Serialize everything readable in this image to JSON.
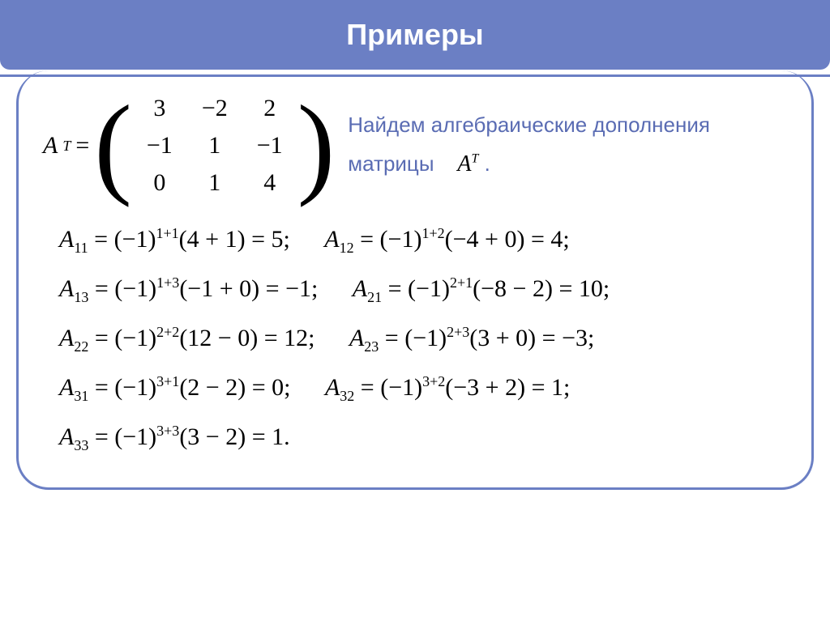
{
  "header": {
    "title": "Примеры"
  },
  "colors": {
    "accent": "#6b7fc4",
    "text_accent": "#5a6cb3",
    "white": "#ffffff",
    "black": "#000000"
  },
  "typography": {
    "header_fontsize": 36,
    "body_fontsize": 26,
    "math_fontsize": 30,
    "matrix_fontsize": 30
  },
  "matrix": {
    "label": "A",
    "superscript": "T",
    "equals": "=",
    "rows": [
      [
        "3",
        "−2",
        "2"
      ],
      [
        "−1",
        "1",
        "−1"
      ],
      [
        "0",
        "1",
        "4"
      ]
    ]
  },
  "description": {
    "line1": "Найдем алгебраические дополнения",
    "line2a": "матрицы",
    "matrix_ref_label": "A",
    "matrix_ref_sup": "T",
    "period": "."
  },
  "cofactors": {
    "A11": {
      "sub": "11",
      "sup": "1+1",
      "expr": "(4 + 1)",
      "res": "5;"
    },
    "A12": {
      "sub": "12",
      "sup": "1+2",
      "expr": "(−4 + 0)",
      "res": "4;"
    },
    "A13": {
      "sub": "13",
      "sup": "1+3",
      "expr": "(−1 + 0)",
      "res": "−1;"
    },
    "A21": {
      "sub": "21",
      "sup": "2+1",
      "expr": "(−8 − 2)",
      "res": "10;"
    },
    "A22": {
      "sub": "22",
      "sup": "2+2",
      "expr": "(12 − 0)",
      "res": "12;"
    },
    "A23": {
      "sub": "23",
      "sup": "2+3",
      "expr": "(3 + 0)",
      "res": "−3;"
    },
    "A31": {
      "sub": "31",
      "sup": "3+1",
      "expr": "(2 − 2)",
      "res": "0;"
    },
    "A32": {
      "sub": "32",
      "sup": "3+2",
      "expr": "(−3 + 2)",
      "res": "1;"
    },
    "A33": {
      "sub": "33",
      "sup": "3+3",
      "expr": "(3 − 2)",
      "res": "1."
    }
  }
}
